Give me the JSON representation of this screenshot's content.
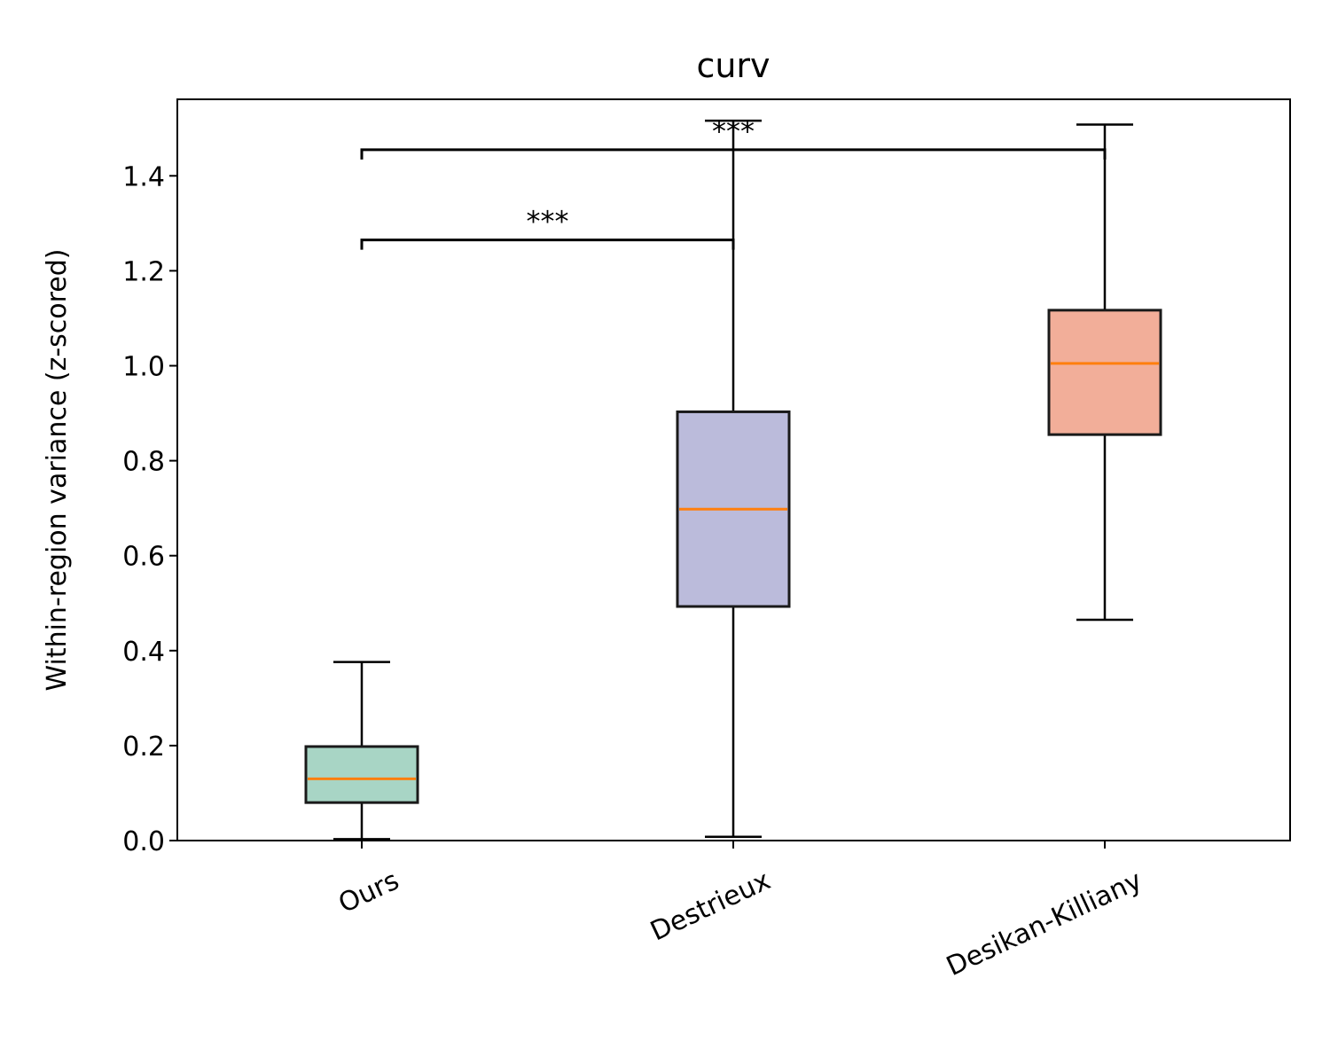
{
  "chart_data": {
    "type": "box",
    "title": "curv",
    "xlabel": "",
    "ylabel": "Within-region variance (z-scored)",
    "ylim": [
      0.0,
      1.56
    ],
    "yticks": [
      0.0,
      0.2,
      0.4,
      0.6,
      0.8,
      1.0,
      1.2,
      1.4
    ],
    "ytick_labels": [
      "0.0",
      "0.2",
      "0.4",
      "0.6",
      "0.8",
      "1.0",
      "1.2",
      "1.4"
    ],
    "categories": [
      "Ours",
      "Destrieux",
      "Desikan-Killiany"
    ],
    "boxes": [
      {
        "name": "Ours",
        "whisker_low": 0.003,
        "q1": 0.08,
        "median": 0.13,
        "q3": 0.198,
        "whisker_high": 0.376,
        "color": "#a8d5c5"
      },
      {
        "name": "Destrieux",
        "whisker_low": 0.008,
        "q1": 0.493,
        "median": 0.698,
        "q3": 0.903,
        "whisker_high": 1.516,
        "color": "#bbbbdb"
      },
      {
        "name": "Desikan-Killiany",
        "whisker_low": 0.465,
        "q1": 0.855,
        "median": 1.005,
        "q3": 1.117,
        "whisker_high": 1.508,
        "color": "#f2ae99"
      }
    ],
    "median_color": "#ff7f0e",
    "significance": [
      {
        "from": 0,
        "to": 1,
        "y": 1.265,
        "label": "***"
      },
      {
        "from": 0,
        "to": 2,
        "y": 1.455,
        "label": "***"
      }
    ]
  }
}
